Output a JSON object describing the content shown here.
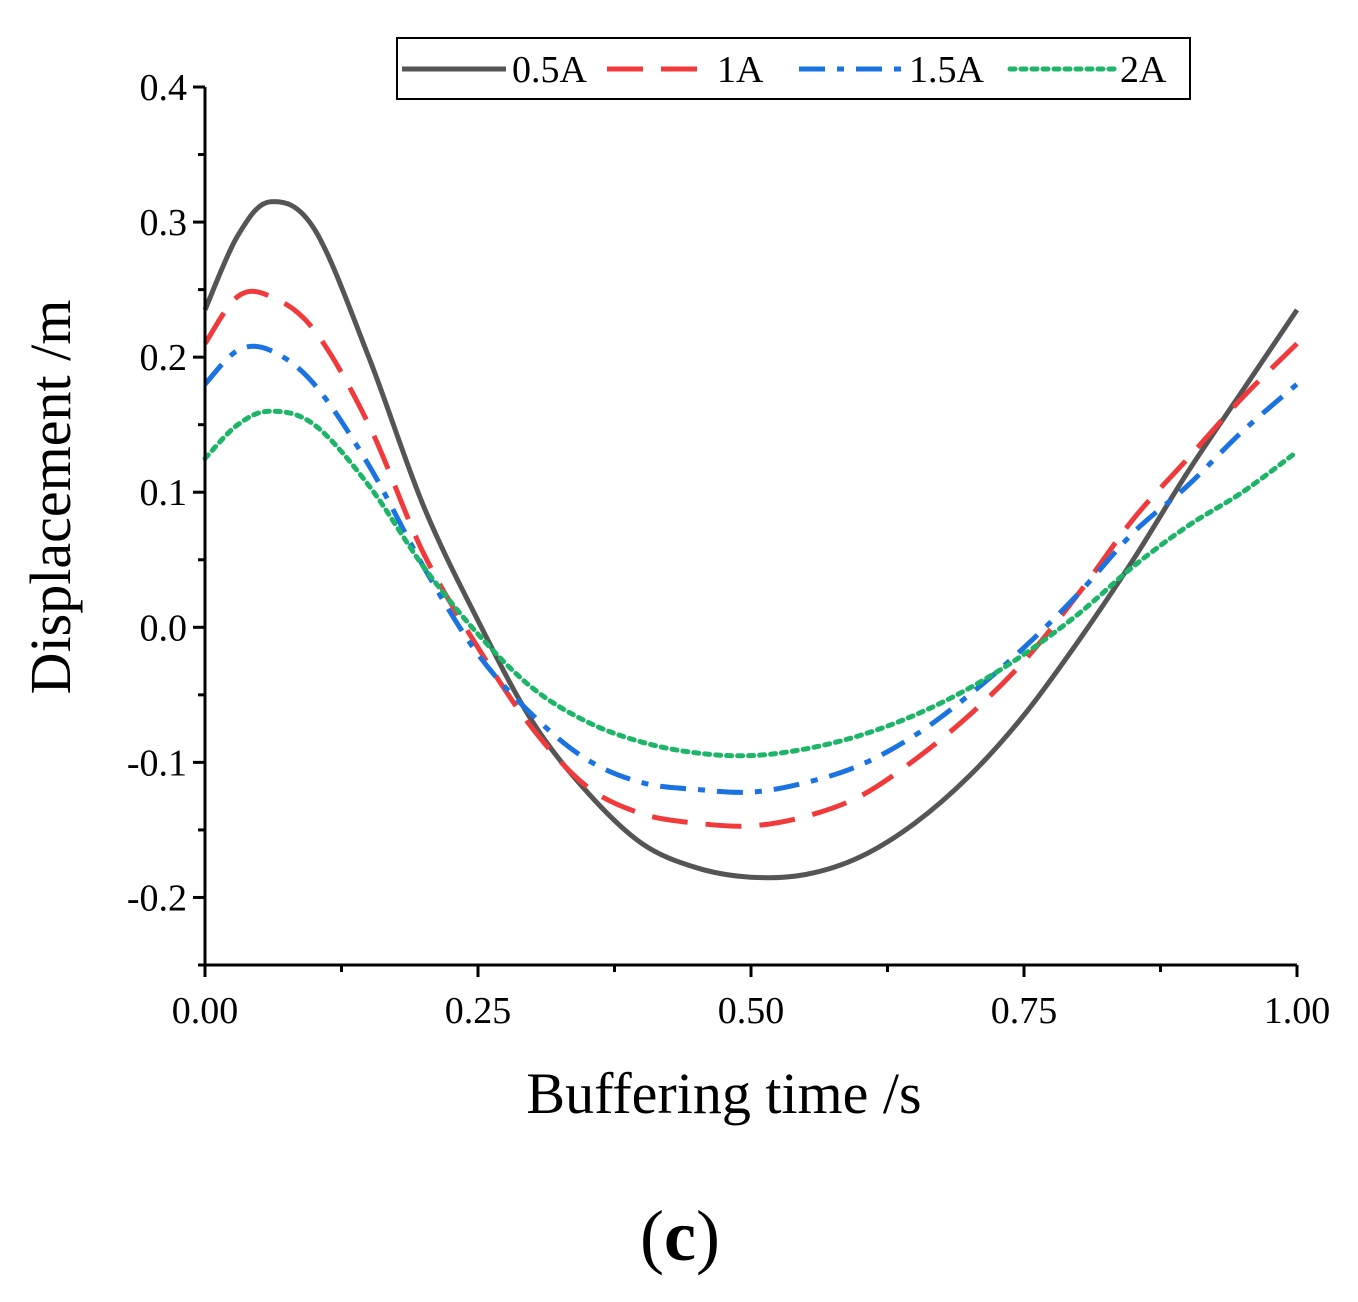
{
  "chart_data": {
    "type": "line",
    "title": "",
    "xlabel": "Buffering time /s",
    "ylabel": "Displacement /m",
    "panel_label": {
      "open": "(",
      "letter": "c",
      "close": ")"
    },
    "xlim": [
      0,
      1
    ],
    "ylim": [
      -0.25,
      0.4
    ],
    "xticks": [
      0.0,
      0.25,
      0.5,
      0.75,
      1.0
    ],
    "xtick_labels": [
      "0.00",
      "0.25",
      "0.50",
      "0.75",
      "1.00"
    ],
    "yticks": [
      -0.2,
      -0.1,
      0.0,
      0.1,
      0.2,
      0.3,
      0.4
    ],
    "ytick_labels": [
      "-0.2",
      "-0.1",
      "0.0",
      "0.1",
      "0.2",
      "0.3",
      "0.4"
    ],
    "grid": false,
    "legend_position": "top",
    "x": [
      0.0,
      0.03,
      0.06,
      0.1,
      0.15,
      0.2,
      0.25,
      0.3,
      0.35,
      0.4,
      0.45,
      0.5,
      0.55,
      0.6,
      0.65,
      0.7,
      0.75,
      0.8,
      0.85,
      0.9,
      0.95,
      1.0
    ],
    "series": [
      {
        "name": "0.5A",
        "color": "#555555",
        "dash": "solid",
        "values": [
          0.235,
          0.29,
          0.315,
          0.295,
          0.2,
          0.09,
          0.005,
          -0.07,
          -0.122,
          -0.16,
          -0.178,
          -0.185,
          -0.183,
          -0.17,
          -0.145,
          -0.11,
          -0.065,
          -0.01,
          0.05,
          0.115,
          0.175,
          0.235
        ]
      },
      {
        "name": "1A",
        "color": "#f03a3c",
        "dash": "dashed",
        "values": [
          0.21,
          0.245,
          0.245,
          0.22,
          0.15,
          0.055,
          -0.015,
          -0.075,
          -0.118,
          -0.138,
          -0.145,
          -0.147,
          -0.14,
          -0.125,
          -0.098,
          -0.065,
          -0.025,
          0.025,
          0.08,
          0.125,
          0.17,
          0.21
        ]
      },
      {
        "name": "1.5A",
        "color": "#1a73e0",
        "dash": "dashdot",
        "values": [
          0.18,
          0.205,
          0.205,
          0.18,
          0.12,
          0.045,
          -0.02,
          -0.065,
          -0.098,
          -0.115,
          -0.12,
          -0.122,
          -0.115,
          -0.102,
          -0.08,
          -0.05,
          -0.015,
          0.025,
          0.07,
          0.105,
          0.145,
          0.18
        ]
      },
      {
        "name": "2A",
        "color": "#1db568",
        "dash": "dotted",
        "values": [
          0.125,
          0.15,
          0.16,
          0.15,
          0.105,
          0.045,
          -0.005,
          -0.045,
          -0.07,
          -0.085,
          -0.093,
          -0.095,
          -0.09,
          -0.08,
          -0.065,
          -0.045,
          -0.02,
          0.01,
          0.045,
          0.075,
          0.1,
          0.13
        ]
      }
    ]
  }
}
